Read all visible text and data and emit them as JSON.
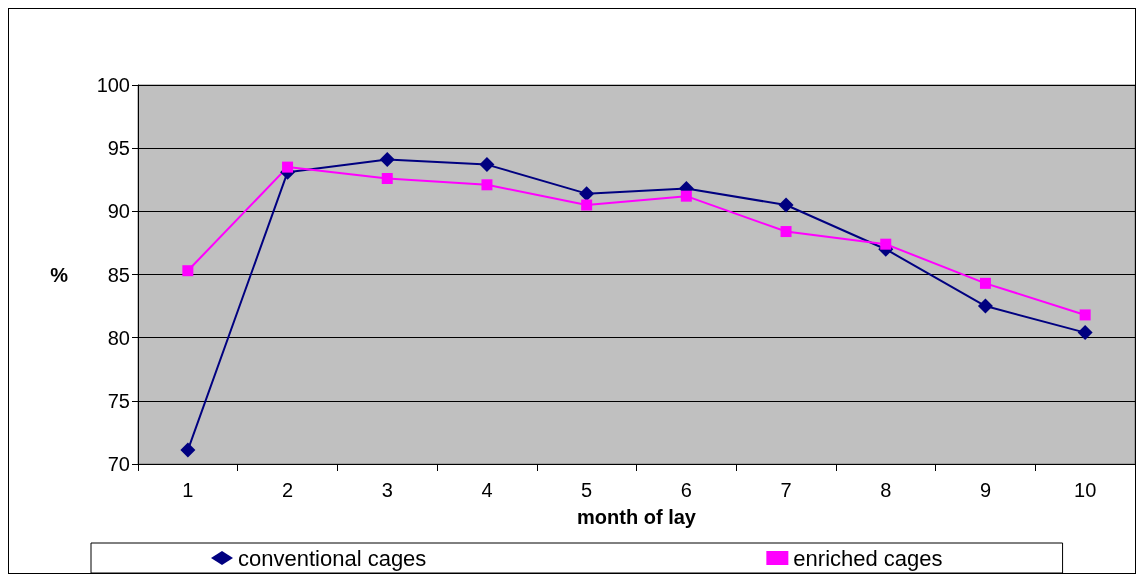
{
  "chart_data": {
    "type": "line",
    "xlabel": "month of lay",
    "ylabel": "%",
    "categories": [
      "1",
      "2",
      "3",
      "4",
      "5",
      "6",
      "7",
      "8",
      "9",
      "10"
    ],
    "series": [
      {
        "name": "conventional cages",
        "color": "#000080",
        "marker": "diamond",
        "values": [
          71.1,
          93.1,
          94.1,
          93.7,
          91.4,
          91.8,
          90.5,
          87.0,
          82.5,
          80.4
        ]
      },
      {
        "name": "enriched cages",
        "color": "#ff00ff",
        "marker": "square",
        "values": [
          85.3,
          93.5,
          92.6,
          92.1,
          90.5,
          91.2,
          88.4,
          87.4,
          84.3,
          81.8
        ]
      }
    ],
    "ylim": [
      70,
      100
    ],
    "yticks": [
      70,
      75,
      80,
      85,
      90,
      95,
      100
    ],
    "grid": "y",
    "legend": "bottom",
    "line_style": "solid"
  }
}
